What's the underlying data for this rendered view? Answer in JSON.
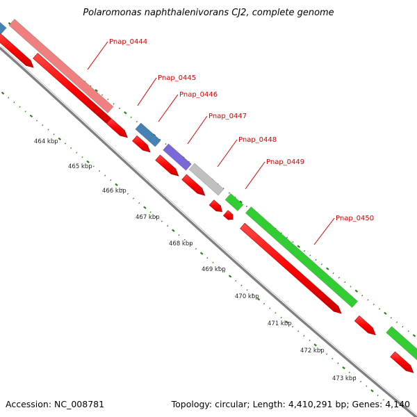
{
  "title": "Polaromonas naphthalenivorans CJ2, complete genome",
  "footer": {
    "accession": "Accession: NC_008781",
    "summary": "Topology: circular; Length: 4,410,291 bp; Genes: 4,140"
  },
  "genes": [
    {
      "label": "Pnap_0444",
      "color": "#f08080"
    },
    {
      "label": "Pnap_0445",
      "color": "#4682b4"
    },
    {
      "label": "Pnap_0446",
      "color": "#4682b4"
    },
    {
      "label": "Pnap_0447",
      "color": "#7b68d8"
    },
    {
      "label": "Pnap_0448",
      "color": "#c0c0c0"
    },
    {
      "label": "Pnap_0449",
      "color": "#32cd32"
    },
    {
      "label": "Pnap_0450",
      "color": "#32cd32"
    }
  ],
  "ruler_labels": [
    "464 kbp",
    "465 kbp",
    "466 kbp",
    "467 kbp",
    "468 kbp",
    "469 kbp",
    "470 kbp",
    "471 kbp",
    "472 kbp",
    "473 kbp"
  ],
  "colors": {
    "backbone": "#808080",
    "orf_arrow": "#ff0000",
    "label_line": "#d40000",
    "tick_dots": "#2e7d1e"
  }
}
